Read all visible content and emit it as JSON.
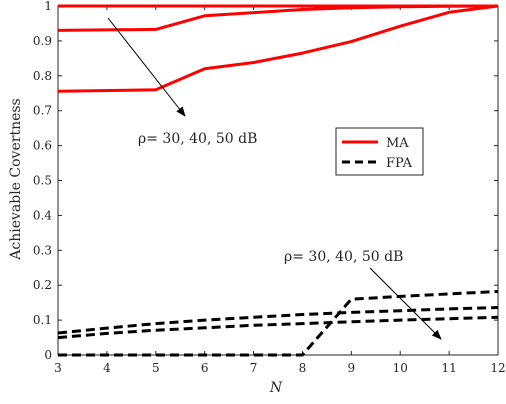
{
  "chart_data": {
    "type": "line",
    "xlabel": "N",
    "ylabel": "Achievable Covertness",
    "xlim": [
      3,
      12
    ],
    "ylim": [
      0,
      1
    ],
    "xticks": [
      "3",
      "4",
      "5",
      "6",
      "7",
      "8",
      "9",
      "10",
      "11",
      "12"
    ],
    "yticks": [
      "0",
      "0.1",
      "0.2",
      "0.3",
      "0.4",
      "0.5",
      "0.6",
      "0.7",
      "0.8",
      "0.9",
      "1"
    ],
    "grid": false,
    "legend": {
      "position": "center-right",
      "entries": [
        {
          "label": "MA",
          "color": "#ff0000",
          "style": "solid"
        },
        {
          "label": "FPA",
          "color": "#000000",
          "style": "dashed"
        }
      ]
    },
    "annotations": [
      {
        "text": "ρ= 30, 40, 50 dB",
        "near": "upper series"
      },
      {
        "text": "ρ= 30, 40, 50 dB",
        "near": "lower series"
      }
    ],
    "series": [
      {
        "group": "MA",
        "color": "#ff0000",
        "dash": "solid",
        "x": [
          3,
          5,
          6,
          7,
          8,
          9,
          10,
          11,
          12
        ],
        "y": [
          1.0,
          1.0,
          1.0,
          1.0,
          1.0,
          1.0,
          1.0,
          1.0,
          1.0
        ]
      },
      {
        "group": "MA",
        "color": "#ff0000",
        "dash": "solid",
        "x": [
          3,
          5,
          6,
          7,
          8,
          9,
          10,
          11,
          12
        ],
        "y": [
          0.93,
          0.933,
          0.972,
          0.981,
          0.99,
          0.995,
          0.998,
          0.999,
          1.0
        ]
      },
      {
        "group": "MA",
        "color": "#ff0000",
        "dash": "solid",
        "x": [
          3,
          5,
          6,
          7,
          8,
          9,
          10,
          11,
          12
        ],
        "y": [
          0.756,
          0.76,
          0.82,
          0.838,
          0.865,
          0.898,
          0.942,
          0.982,
          1.0
        ]
      },
      {
        "group": "FPA",
        "color": "#000000",
        "dash": "dashed",
        "x": [
          3,
          4,
          5,
          6,
          7,
          8,
          9,
          10,
          11,
          12
        ],
        "y": [
          0.063,
          0.077,
          0.09,
          0.1,
          0.108,
          0.116,
          0.122,
          0.127,
          0.132,
          0.136
        ]
      },
      {
        "group": "FPA",
        "color": "#000000",
        "dash": "dashed",
        "x": [
          3,
          4,
          5,
          6,
          7,
          8,
          9,
          10,
          11,
          12
        ],
        "y": [
          0.05,
          0.062,
          0.071,
          0.078,
          0.085,
          0.09,
          0.095,
          0.1,
          0.104,
          0.108
        ]
      },
      {
        "group": "FPA",
        "color": "#000000",
        "dash": "dashed",
        "x": [
          3,
          4,
          5,
          6,
          7,
          8,
          9,
          10,
          11,
          12
        ],
        "y": [
          0,
          0,
          0,
          0,
          0,
          0,
          0.16,
          0.168,
          0.175,
          0.182
        ]
      }
    ]
  }
}
